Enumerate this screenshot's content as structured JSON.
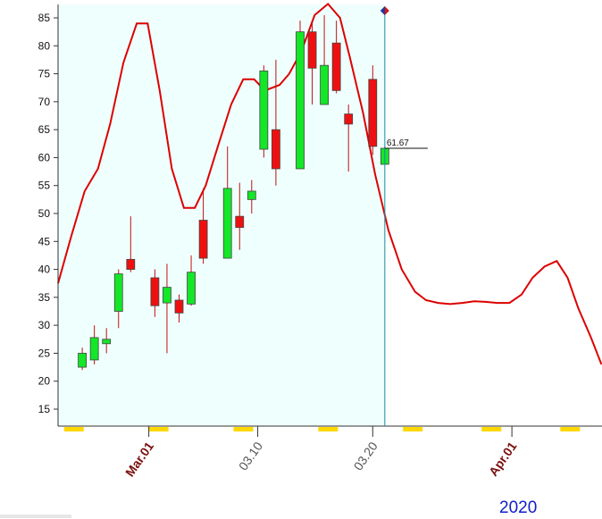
{
  "chart_data": {
    "type": "candlestick",
    "y_ticks": [
      15,
      20,
      25,
      30,
      35,
      40,
      45,
      50,
      55,
      60,
      65,
      70,
      75,
      80,
      85
    ],
    "ylim": [
      11,
      87.5
    ],
    "x_tick_labels": [
      "Mar.01",
      "03.10",
      "03.20",
      "Apr.01"
    ],
    "year_label": "2020",
    "last_price_label": "61.67",
    "last_price": 61.67,
    "candles": [
      {
        "day": 2,
        "open": 22.5,
        "high": 26.0,
        "low": 22.0,
        "close": 25.0
      },
      {
        "day": 3,
        "open": 23.8,
        "high": 30.0,
        "low": 23.0,
        "close": 27.8
      },
      {
        "day": 4,
        "open": 26.7,
        "high": 29.5,
        "low": 25.0,
        "close": 27.5
      },
      {
        "day": 5,
        "open": 32.5,
        "high": 40.0,
        "low": 29.5,
        "close": 39.2
      },
      {
        "day": 6,
        "open": 41.8,
        "high": 49.5,
        "low": 39.5,
        "close": 40.0
      },
      {
        "day": 8,
        "open": 38.5,
        "high": 40.0,
        "low": 31.5,
        "close": 33.5
      },
      {
        "day": 9,
        "open": 34.0,
        "high": 41.0,
        "low": 25.0,
        "close": 36.8
      },
      {
        "day": 10,
        "open": 34.5,
        "high": 35.5,
        "low": 30.5,
        "close": 32.2
      },
      {
        "day": 11,
        "open": 33.8,
        "high": 42.5,
        "low": 33.5,
        "close": 39.5
      },
      {
        "day": 12,
        "open": 48.8,
        "high": 54.5,
        "low": 41.0,
        "close": 42.0
      },
      {
        "day": 14,
        "open": 42.0,
        "high": 62.0,
        "low": 42.0,
        "close": 54.5
      },
      {
        "day": 15,
        "open": 49.5,
        "high": 55.5,
        "low": 43.5,
        "close": 47.5
      },
      {
        "day": 16,
        "open": 52.5,
        "high": 56.0,
        "low": 50.0,
        "close": 54.0
      },
      {
        "day": 17,
        "open": 61.5,
        "high": 76.5,
        "low": 60.0,
        "close": 75.5
      },
      {
        "day": 18,
        "open": 65.0,
        "high": 77.5,
        "low": 55.0,
        "close": 58.0
      },
      {
        "day": 20,
        "open": 58.0,
        "high": 84.5,
        "low": 58.0,
        "close": 82.5
      },
      {
        "day": 21,
        "open": 82.5,
        "high": 84.5,
        "low": 69.5,
        "close": 76.0
      },
      {
        "day": 22,
        "open": 69.5,
        "high": 85.5,
        "low": 69.5,
        "close": 76.5
      },
      {
        "day": 23,
        "open": 80.5,
        "high": 84.5,
        "low": 71.5,
        "close": 72.0
      },
      {
        "day": 24,
        "open": 67.8,
        "high": 69.5,
        "low": 57.5,
        "close": 66.0
      },
      {
        "day": 26,
        "open": 74.0,
        "high": 76.5,
        "low": 60.5,
        "close": 62.0
      },
      {
        "day": 27,
        "open": 58.8,
        "high": 62.0,
        "low": 58.8,
        "close": 61.67
      }
    ],
    "line_series": [
      {
        "day": 0.0,
        "value": 37.5
      },
      {
        "day": 1.1,
        "value": 46.0
      },
      {
        "day": 2.2,
        "value": 54.0
      },
      {
        "day": 3.3,
        "value": 58.0
      },
      {
        "day": 4.3,
        "value": 66.0
      },
      {
        "day": 5.4,
        "value": 77.0
      },
      {
        "day": 6.5,
        "value": 84.0
      },
      {
        "day": 7.4,
        "value": 84.0
      },
      {
        "day": 8.4,
        "value": 72.0
      },
      {
        "day": 9.4,
        "value": 58.0
      },
      {
        "day": 10.4,
        "value": 51.0
      },
      {
        "day": 11.3,
        "value": 51.0
      },
      {
        "day": 12.2,
        "value": 55.0
      },
      {
        "day": 13.2,
        "value": 62.0
      },
      {
        "day": 14.3,
        "value": 69.5
      },
      {
        "day": 15.3,
        "value": 74.0
      },
      {
        "day": 16.2,
        "value": 74.0
      },
      {
        "day": 17.1,
        "value": 72.0
      },
      {
        "day": 18.3,
        "value": 73.0
      },
      {
        "day": 19.1,
        "value": 75.0
      },
      {
        "day": 20.1,
        "value": 79.0
      },
      {
        "day": 21.2,
        "value": 85.5
      },
      {
        "day": 22.3,
        "value": 87.5
      },
      {
        "day": 23.3,
        "value": 85.0
      },
      {
        "day": 24.1,
        "value": 78.0
      },
      {
        "day": 25.2,
        "value": 68.0
      },
      {
        "day": 26.2,
        "value": 57.0
      },
      {
        "day": 27.3,
        "value": 47.0
      },
      {
        "day": 28.4,
        "value": 40.0
      },
      {
        "day": 29.5,
        "value": 36.0
      },
      {
        "day": 30.4,
        "value": 34.5
      },
      {
        "day": 31.4,
        "value": 34.0
      },
      {
        "day": 32.4,
        "value": 33.8
      },
      {
        "day": 33.4,
        "value": 34.0
      },
      {
        "day": 34.4,
        "value": 34.3
      },
      {
        "day": 35.3,
        "value": 34.2
      },
      {
        "day": 36.3,
        "value": 34.0
      },
      {
        "day": 37.3,
        "value": 34.0
      },
      {
        "day": 38.3,
        "value": 35.5
      },
      {
        "day": 39.2,
        "value": 38.5
      },
      {
        "day": 40.2,
        "value": 40.5
      },
      {
        "day": 41.2,
        "value": 41.5
      },
      {
        "day": 42.1,
        "value": 38.5
      },
      {
        "day": 43.0,
        "value": 33.0
      },
      {
        "day": 44.0,
        "value": 28.0
      },
      {
        "day": 44.9,
        "value": 23.0
      }
    ],
    "cursor_day": 27,
    "xlim": [
      0,
      45
    ],
    "colors": {
      "up": "#14e628",
      "down": "#ee1010",
      "wick": "#c01010",
      "line": "#dd0000",
      "plot_bg": "#effffe",
      "cursor": "#1a8aa0",
      "marker": "#ffd800",
      "month_label": "#7a0f0f",
      "day_label": "#555555",
      "year_label": "#1020c8"
    },
    "gold_marker_days": [
      0.5,
      7.5,
      14.5,
      21.5,
      28.5,
      35,
      41.5
    ]
  }
}
